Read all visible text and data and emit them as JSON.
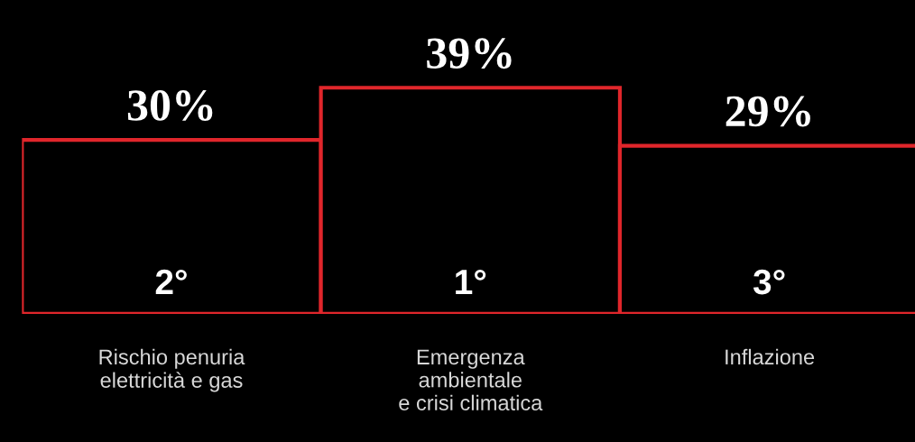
{
  "chart_data": {
    "type": "bar",
    "categories": [
      "Rischio penuria\nelettricità e gas",
      "Emergenza\nambientale\ne crisi climatica",
      "Inflazione"
    ],
    "values": [
      30,
      39,
      29
    ],
    "value_labels": [
      "30%",
      "39%",
      "29%"
    ],
    "color": "#e0262b",
    "annotations": [
      "2°",
      "1°",
      "3°"
    ],
    "grid": false,
    "legend": false
  }
}
